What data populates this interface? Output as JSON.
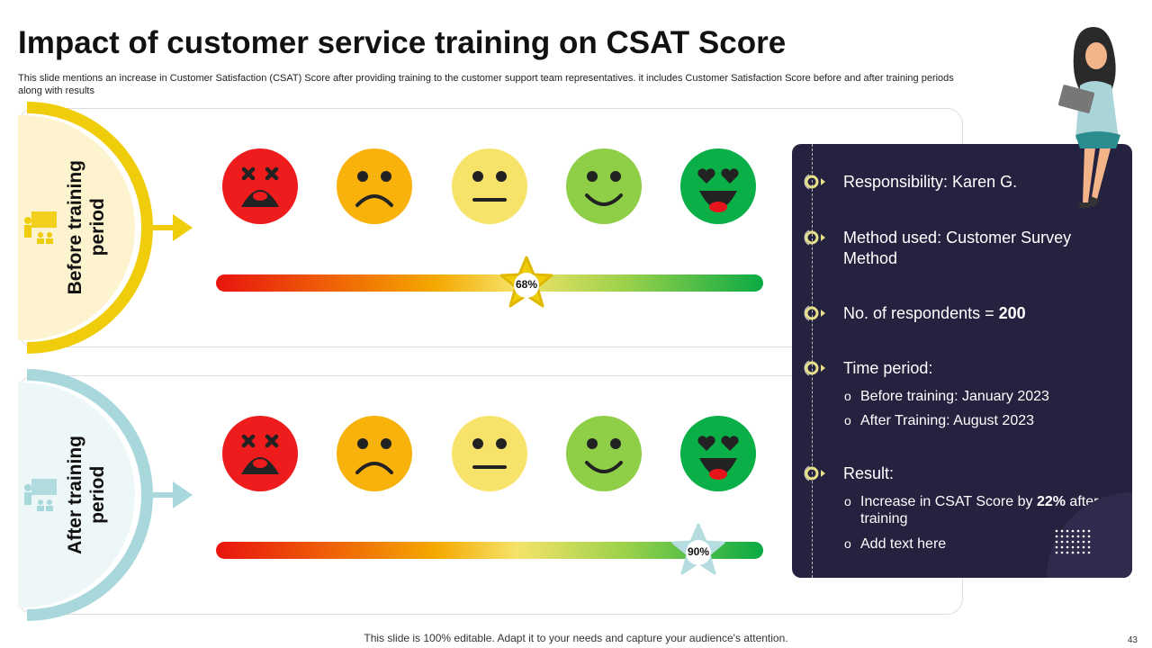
{
  "title": "Impact of customer service training on CSAT Score",
  "subtitle": "This slide mentions an increase in Customer Satisfaction (CSAT) Score after providing training to the customer support team representatives. it includes Customer Satisfaction Score before and after training periods along with results",
  "sections": [
    {
      "label_line1": "Before training",
      "label_line2": "period",
      "score": "68%",
      "score_value": 68,
      "accent": "#f0cd0a",
      "fill": "#fdf4cf",
      "icon": "training-presentation-icon"
    },
    {
      "label_line1": "After training",
      "label_line2": "period",
      "score": "90%",
      "score_value": 90,
      "accent": "#a8d8dc",
      "fill": "#eef7f7",
      "icon": "training-presentation-icon"
    }
  ],
  "faces": [
    "very-dissatisfied-face",
    "dissatisfied-face",
    "neutral-face",
    "satisfied-face",
    "very-satisfied-face"
  ],
  "face_colors": [
    "#ee1c1c",
    "#f9b10c",
    "#f8e36a",
    "#8fcf48",
    "#0aaf47"
  ],
  "panel": {
    "items": [
      {
        "text": "Responsibility: Karen G."
      },
      {
        "text": "Method used: Customer Survey Method"
      },
      {
        "text_prefix": "No. of respondents = ",
        "text_bold": "200"
      },
      {
        "text": "Time period:",
        "subs": [
          "Before training:  January  2023",
          "After Training:  August 2023"
        ]
      },
      {
        "text": "Result:",
        "subs_rich": {
          "prefix": "Increase  in CSAT Score by ",
          "bold": "22%",
          "suffix": " after training"
        },
        "subs": [
          "Add text here"
        ]
      }
    ],
    "bg": "#25223f"
  },
  "footer": "This slide is 100% editable. Adapt it to your needs and capture your audience's attention.",
  "page_number": "43"
}
